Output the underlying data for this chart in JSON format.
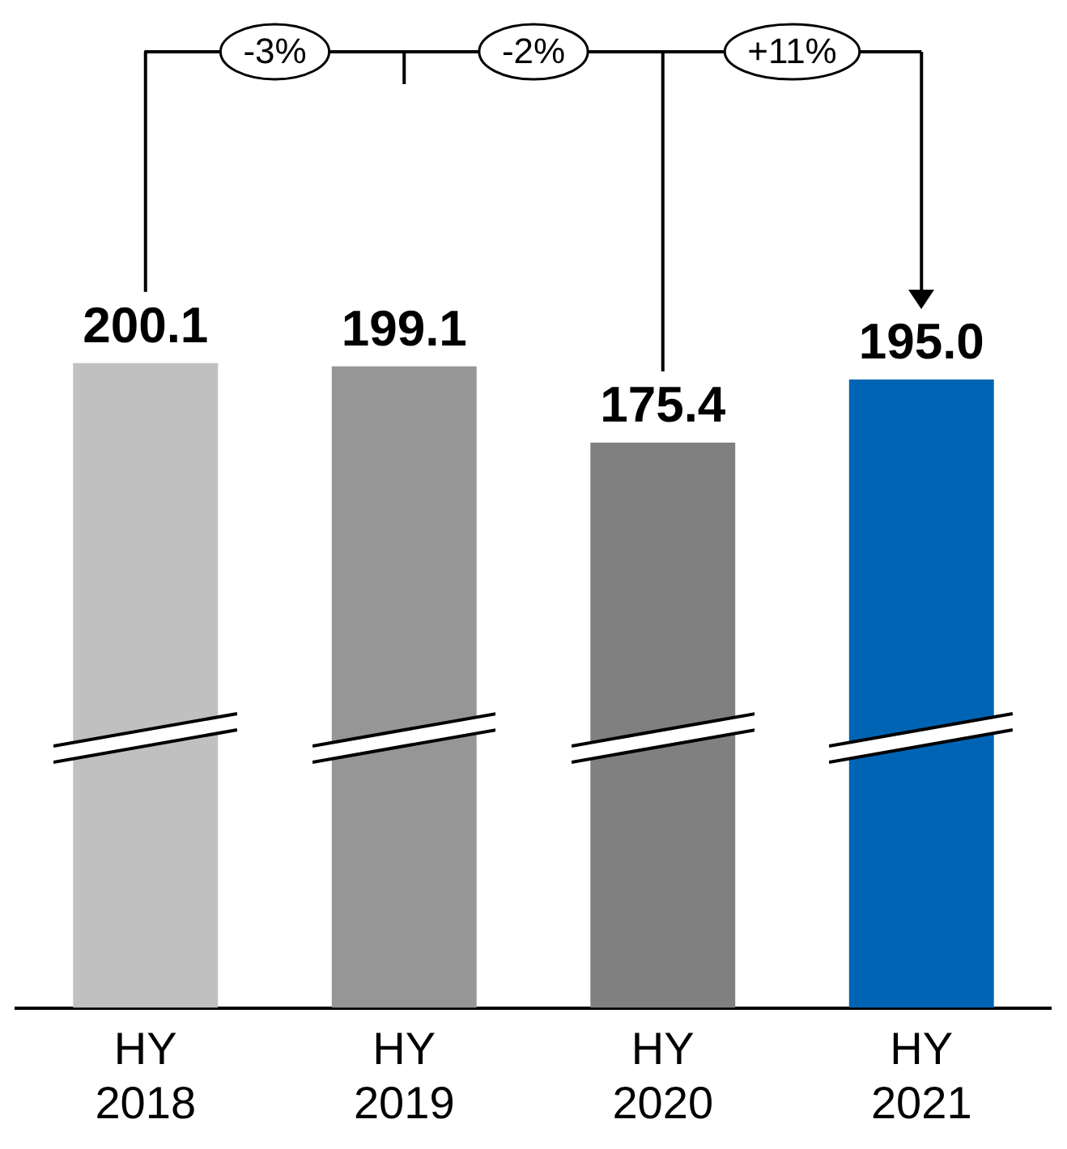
{
  "chart_data": {
    "type": "bar",
    "categories": [
      "HY\n2018",
      "HY\n2019",
      "HY\n2020",
      "HY\n2021"
    ],
    "values": [
      200.1,
      199.1,
      175.4,
      195.0
    ],
    "colors": [
      "#c0c0c0",
      "#969696",
      "#808080",
      "#0064b4"
    ],
    "data_labels": true,
    "value_labels": [
      "200.1",
      "199.1",
      "175.4",
      "195.0"
    ],
    "annotations": [
      "-3%",
      "-2%",
      "+11%"
    ],
    "grid": false,
    "legend": false
  }
}
